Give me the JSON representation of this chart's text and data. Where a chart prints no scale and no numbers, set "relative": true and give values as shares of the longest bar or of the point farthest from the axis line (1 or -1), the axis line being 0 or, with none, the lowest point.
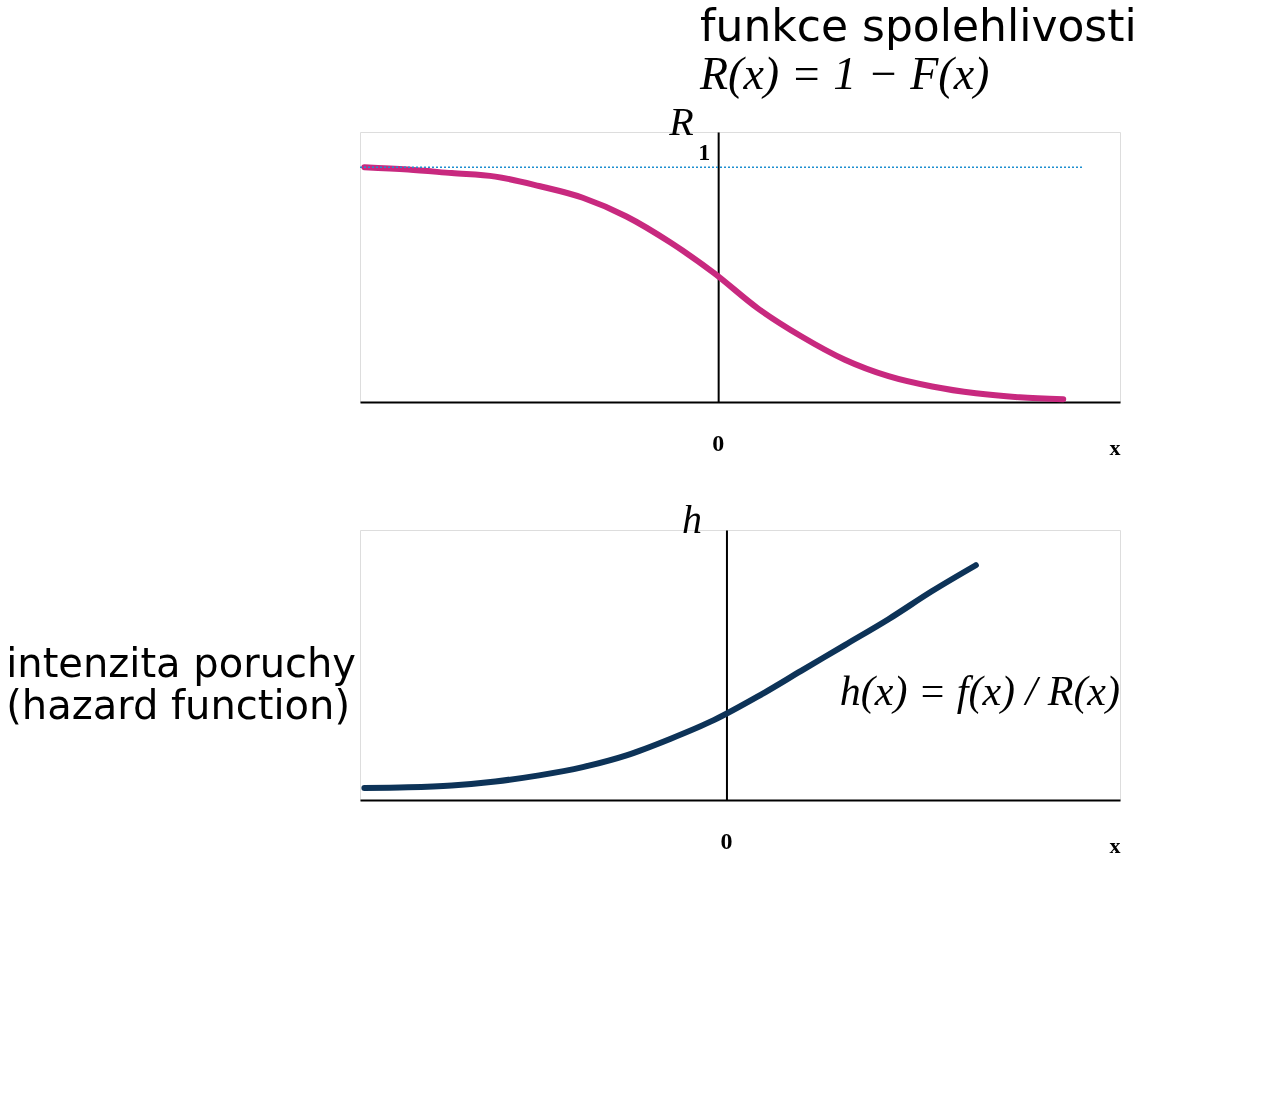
{
  "chart_data": [
    {
      "type": "line",
      "title": "funkce spolehlivosti",
      "subtitle": "R(x) = 1 − F(x)",
      "ylabel": "R",
      "xlabel": "x",
      "relative": true,
      "grid": false,
      "line_style": "solid",
      "categories": [
        null,
        null,
        null,
        null,
        null,
        null,
        null,
        null,
        null,
        null,
        null,
        null,
        null,
        null,
        null,
        null,
        null
      ],
      "series": [
        {
          "color": "#c8297f",
          "values": [
            1.0,
            0.99,
            0.975,
            0.96,
            0.92,
            0.87,
            0.79,
            0.68,
            0.55,
            0.4,
            0.28,
            0.18,
            0.11,
            0.066,
            0.037,
            0.02,
            0.012
          ]
        }
      ],
      "ref_lines": [
        {
          "axis": "y",
          "value": 1,
          "label": "1",
          "color": "#1f8fd0",
          "line_style": "dotted"
        }
      ],
      "annotations": [
        "0"
      ]
    },
    {
      "type": "line",
      "title": "intenzita poruchy (hazard function)",
      "ylabel": "h",
      "xlabel": "x",
      "relative": true,
      "grid": false,
      "line_style": "solid",
      "categories": [
        null,
        null,
        null,
        null,
        null,
        null,
        null,
        null,
        null,
        null,
        null,
        null,
        null,
        null,
        null
      ],
      "series": [
        {
          "color": "#0d3358",
          "values": [
            0.051,
            0.054,
            0.062,
            0.079,
            0.105,
            0.14,
            0.19,
            0.26,
            0.34,
            0.44,
            0.55,
            0.66,
            0.77,
            0.89,
            1.0
          ]
        }
      ],
      "annotations": [
        "0",
        "h(x) = f(x) / R(x)"
      ]
    }
  ]
}
